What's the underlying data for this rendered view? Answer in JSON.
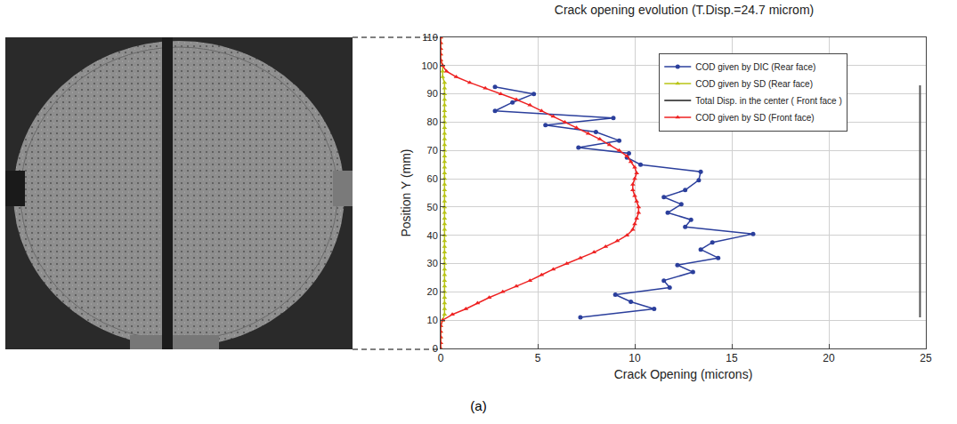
{
  "chart_data": {
    "type": "line",
    "title": "Crack opening evolution (T.Disp.=24.7 microm)",
    "x_label": "Crack Opening (microns)",
    "y_label": "Position Y (mm)",
    "xlim": [
      0,
      25
    ],
    "xticks": [
      0,
      5,
      10,
      15,
      20,
      25
    ],
    "ylim": [
      0,
      110
    ],
    "yticks": [
      0,
      10,
      20,
      30,
      40,
      50,
      60,
      70,
      80,
      90,
      100,
      110
    ],
    "grid": true,
    "legend": "upper right",
    "series": [
      {
        "name": "COD given by DIC (Rear face)",
        "color": "#2b3f9c",
        "marker": "circle",
        "line_style": "solid",
        "x": [
          7.2,
          11.0,
          9.8,
          9.0,
          11.8,
          11.5,
          13.0,
          12.2,
          14.3,
          13.4,
          14.0,
          16.1,
          12.6,
          12.9,
          11.7,
          12.4,
          11.5,
          12.6,
          13.3,
          13.4,
          10.3,
          9.6,
          9.7,
          7.1,
          9.2,
          8.0,
          5.4,
          8.9,
          2.8,
          3.7,
          4.8,
          2.8
        ],
        "y": [
          11,
          14,
          16.5,
          19,
          21.5,
          24,
          27,
          29.5,
          32,
          35,
          37.5,
          40.5,
          43,
          45.5,
          48,
          51,
          53.5,
          56,
          59.5,
          62.5,
          65,
          67.5,
          69,
          71,
          73.5,
          76.5,
          79,
          81.5,
          84,
          87,
          90,
          92.5
        ]
      },
      {
        "name": "COD given by SD (Rear face)",
        "color": "#b8c414",
        "marker": "triangle",
        "line_style": "solid",
        "x": [
          0,
          0,
          0,
          0,
          0,
          0.1,
          0.2,
          0.2,
          0.2,
          0.2,
          0.2,
          0.2,
          0.2,
          0.2,
          0.2,
          0.2,
          0.2,
          0.2,
          0.2,
          0.2,
          0.2,
          0.2,
          0.2,
          0.2,
          0.2,
          0.2,
          0.2,
          0.2,
          0.2,
          0.2,
          0.2,
          0.2,
          0.2,
          0.2,
          0.2,
          0.2,
          0.2,
          0.2,
          0.2,
          0.2,
          0.2,
          0.2,
          0.2,
          0.2,
          0.2,
          0.2,
          0.2,
          0.2,
          0.1,
          0.1,
          0.1,
          0,
          0,
          0,
          0,
          0
        ],
        "y": [
          0,
          2,
          4,
          6,
          8,
          10,
          12,
          14,
          16,
          18,
          20,
          22,
          24,
          26,
          28,
          30,
          32,
          34,
          36,
          38,
          40,
          42,
          44,
          46,
          48,
          50,
          52,
          54,
          56,
          58,
          60,
          62,
          64,
          66,
          68,
          70,
          72,
          74,
          76,
          78,
          80,
          82,
          84,
          86,
          88,
          90,
          92,
          94,
          96,
          98,
          100,
          102,
          104,
          106,
          108,
          110
        ]
      },
      {
        "name": "Total Disp. in the center ( Front face )",
        "color": "#555555",
        "marker": "none",
        "line_style": "solid",
        "x": [
          24.7,
          24.7
        ],
        "y": [
          11,
          93
        ]
      },
      {
        "name": "COD given by SD (Front face)",
        "color": "#ee2222",
        "marker": "triangle",
        "line_style": "solid",
        "x": [
          0,
          0,
          0,
          0,
          0,
          0.1,
          0.6,
          1.3,
          1.9,
          2.5,
          3.2,
          3.9,
          4.6,
          5.2,
          5.8,
          6.5,
          7.2,
          7.9,
          8.5,
          9.1,
          9.6,
          9.9,
          10.0,
          10.1,
          10.2,
          10.2,
          10.1,
          10.0,
          9.9,
          9.9,
          10.0,
          10.1,
          10.0,
          9.8,
          9.6,
          9.2,
          8.7,
          8.2,
          7.6,
          7.0,
          6.4,
          5.8,
          5.2,
          4.6,
          3.9,
          3.1,
          2.3,
          1.5,
          0.8,
          0.3,
          0.1,
          0,
          0,
          0,
          0,
          0
        ],
        "y": [
          0,
          2,
          4,
          6,
          8,
          10,
          12,
          14,
          16,
          18,
          20,
          22,
          24,
          26,
          28,
          30,
          32,
          34,
          36,
          38,
          40,
          42,
          44,
          46,
          48,
          50,
          52,
          54,
          56,
          58,
          60,
          62,
          64,
          66,
          68,
          70,
          72,
          74,
          76,
          78,
          80,
          82,
          84,
          86,
          88,
          90,
          92,
          94,
          96,
          98,
          100,
          102,
          104,
          106,
          108,
          110
        ]
      }
    ]
  },
  "caption": "(a)"
}
